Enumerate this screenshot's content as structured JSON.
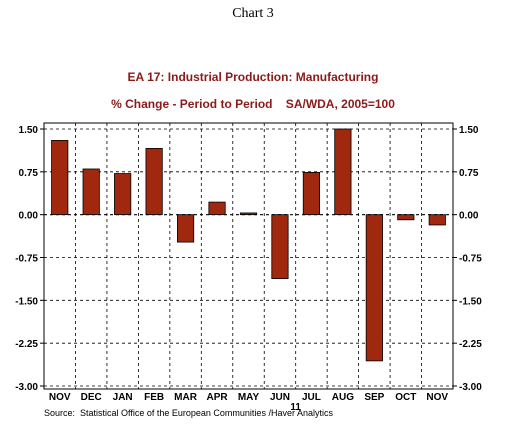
{
  "caption": "Chart 3",
  "source": "Source:  Statistical Office of the European Communities /Haver Analytics",
  "chart_data": {
    "type": "bar",
    "title": "EA 17: Industrial Production: Manufacturing",
    "subtitle": "% Change - Period to Period    SA/WDA, 2005=100",
    "categories": [
      "NOV",
      "DEC",
      "JAN",
      "FEB",
      "MAR",
      "APR",
      "MAY",
      "JUN",
      "JUL",
      "AUG",
      "SEP",
      "OCT",
      "NOV"
    ],
    "year_label": "11",
    "series": [
      {
        "values": [
          1.3,
          0.8,
          0.72,
          1.16,
          -0.48,
          0.22,
          0.03,
          -1.12,
          0.74,
          1.5,
          -2.56,
          -0.09,
          -0.18
        ]
      }
    ],
    "ylim": [
      -3.0,
      1.5
    ],
    "yticks": [
      -3.0,
      -2.25,
      -1.5,
      -0.75,
      0.0,
      0.75,
      1.5
    ],
    "ytick_labels": [
      "-3.00",
      "-2.25",
      "-1.50",
      "-0.75",
      "0.00",
      "0.75",
      "1.50"
    ],
    "grid": true,
    "bar_color": "#a0280f",
    "title_color": "#8b1a1a"
  }
}
